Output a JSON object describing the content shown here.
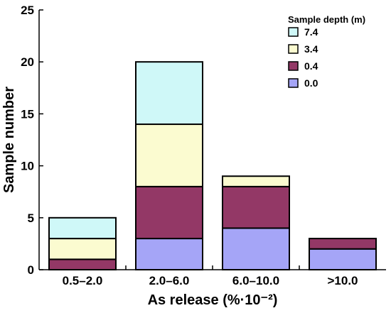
{
  "chart_data": {
    "type": "bar",
    "stacked": true,
    "categories": [
      "0.5–2.0",
      "2.0–6.0",
      "6.0–10.0",
      ">10.0"
    ],
    "series": [
      {
        "name": "0.0",
        "color": "#a5a5f7",
        "values": [
          0,
          3,
          4,
          2
        ]
      },
      {
        "name": "0.4",
        "color": "#933866",
        "values": [
          1,
          5,
          4,
          1
        ]
      },
      {
        "name": "3.4",
        "color": "#fbfbd0",
        "values": [
          2,
          6,
          1,
          0
        ]
      },
      {
        "name": "7.4",
        "color": "#cff8f8",
        "values": [
          2,
          6,
          0,
          0
        ]
      }
    ],
    "xlabel": "As release (%·10⁻²)",
    "ylabel": "Sample number",
    "ylim": [
      0,
      25
    ],
    "yticks": [
      "0",
      "5",
      "10",
      "15",
      "20",
      "25"
    ],
    "grid": false,
    "legend": {
      "title": "Sample depth (m)",
      "placement": "top-right",
      "order": [
        "7.4",
        "3.4",
        "0.4",
        "0.0"
      ]
    }
  }
}
